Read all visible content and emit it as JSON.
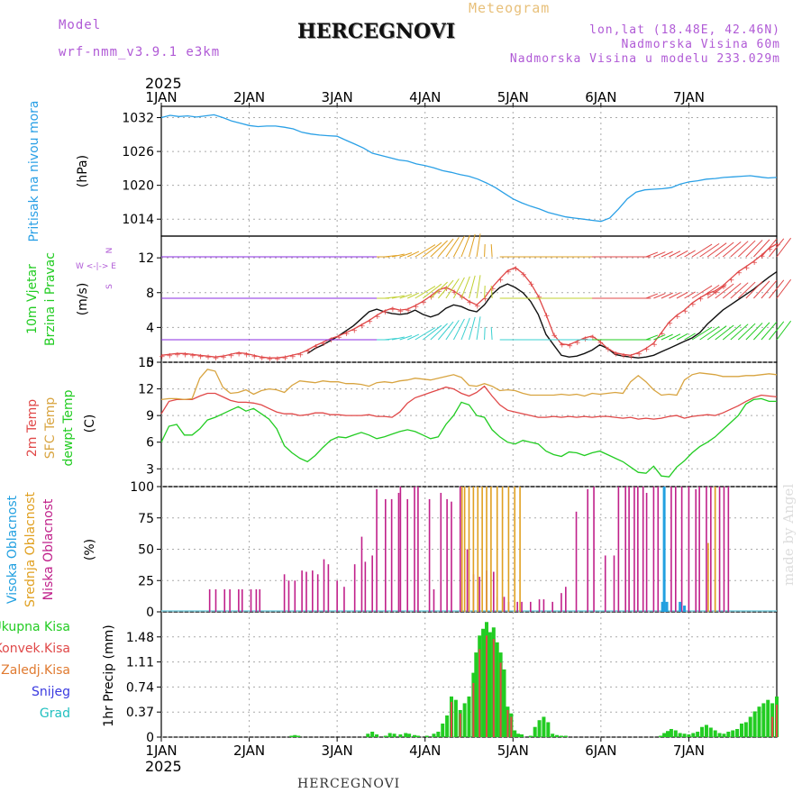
{
  "header": {
    "model_label": "Model",
    "model_version": "wrf-nmm_v3.9.1 e3km",
    "title": "HERCEGNOVI",
    "meteogram_label": "Meteogram",
    "lonlat": "lon,lat (18.48E, 42.46N)",
    "elevation": "Nadmorska Visina 60m",
    "model_elevation": "Nadmorska Visina u modelu 233.029m"
  },
  "footer": {
    "location": "HERCEGNOVI",
    "watermark": "made by Angel"
  },
  "colors": {
    "pressure": "#2aa0e6",
    "wind_speed": "#e04848",
    "wind_gust": "#111111",
    "temp2m": "#e04848",
    "sfc_temp": "#d8a440",
    "dewpt": "#22cc22",
    "cloud_high": "#22a0e0",
    "cloud_mid": "#e0a020",
    "cloud_low": "#c0208a",
    "precip_total": "#22cc22",
    "precip_conv": "#e04848",
    "precip_frz": "#e07a30",
    "snow": "#3a3ae0",
    "grad": "#22c0c0",
    "wind_labels": "#b05ad6"
  },
  "chart_data": [
    {
      "type": "line",
      "title": "Pritisak na nivou mora",
      "ylabel": "(hPa)",
      "ylim": [
        1011,
        1034
      ],
      "yticks": [
        1014,
        1020,
        1026,
        1032
      ],
      "x": [
        0,
        0.1,
        0.2,
        0.3,
        0.4,
        0.5,
        0.6,
        0.7,
        0.8,
        0.9,
        1.0,
        1.1,
        1.2,
        1.3,
        1.4,
        1.5,
        1.6,
        1.7,
        1.8,
        1.9,
        2.0,
        2.1,
        2.2,
        2.3,
        2.4,
        2.5,
        2.6,
        2.7,
        2.8,
        2.9,
        3.0,
        3.1,
        3.2,
        3.3,
        3.4,
        3.5,
        3.6,
        3.7,
        3.8,
        3.9,
        4.0,
        4.1,
        4.2,
        4.3,
        4.4,
        4.5,
        4.6,
        4.7,
        4.8,
        4.9,
        5.0,
        5.1,
        5.2,
        5.3,
        5.4,
        5.5,
        5.6,
        5.7,
        5.8,
        5.9,
        6.0,
        6.1,
        6.2,
        6.3,
        6.4,
        6.5,
        6.6,
        6.7,
        6.8,
        6.9,
        7.0
      ],
      "values": [
        1032,
        1032.4,
        1032.2,
        1032.3,
        1032.1,
        1032.3,
        1032.5,
        1032,
        1031.4,
        1031,
        1030.6,
        1030.4,
        1030.5,
        1030.5,
        1030.3,
        1030,
        1029.4,
        1029.1,
        1028.9,
        1028.8,
        1028.7,
        1028,
        1027.3,
        1026.6,
        1025.7,
        1025.3,
        1024.9,
        1024.5,
        1024.3,
        1023.8,
        1023.5,
        1023.1,
        1022.6,
        1022.3,
        1021.9,
        1021.6,
        1021.1,
        1020.4,
        1019.6,
        1018.6,
        1017.6,
        1016.9,
        1016.3,
        1015.8,
        1015.2,
        1014.8,
        1014.4,
        1014.2,
        1014,
        1013.8,
        1013.6,
        1014.2,
        1015.8,
        1017.6,
        1018.8,
        1019.2,
        1019.3,
        1019.4,
        1019.6,
        1020.2,
        1020.6,
        1020.8,
        1021.1,
        1021.2,
        1021.4,
        1021.5,
        1021.6,
        1021.7,
        1021.5,
        1021.3,
        1021.4
      ],
      "x_days": [
        "1JAN",
        "2JAN",
        "3JAN",
        "4JAN",
        "5JAN",
        "6JAN",
        "7JAN"
      ],
      "year": "2025"
    },
    {
      "type": "line",
      "title": "10m Vjetar",
      "subtitle": "Brzina i Pravac",
      "ylabel": "(m/s)",
      "ylim": [
        0,
        14.5
      ],
      "yticks": [
        0,
        4,
        8,
        12
      ],
      "compass_label": "W <-|-> E",
      "compass_n": "N",
      "compass_s": "S",
      "series": [
        {
          "name": "Brzina (wind speed)",
          "values": [
            0.8,
            0.9,
            1.0,
            1.0,
            0.9,
            0.8,
            0.7,
            0.6,
            0.7,
            0.9,
            1.1,
            1.0,
            0.8,
            0.6,
            0.5,
            0.5,
            0.6,
            0.8,
            1.0,
            1.4,
            1.9,
            2.3,
            2.7,
            3.0,
            3.4,
            3.8,
            4.3,
            4.8,
            5.4,
            5.9,
            6.2,
            6.0,
            6.1,
            6.5,
            7.0,
            7.6,
            8.3,
            8.6,
            8.2,
            7.6,
            7.0,
            6.6,
            7.4,
            8.6,
            9.6,
            10.5,
            10.9,
            10.2,
            9.1,
            7.6,
            5.5,
            3.2,
            2.1,
            2.0,
            2.4,
            2.8,
            3.0,
            2.4,
            1.6,
            1.1,
            0.9,
            0.8,
            1.1,
            1.6,
            2.2,
            3.4,
            4.6,
            5.4,
            6.0,
            6.8,
            7.4,
            7.9,
            8.2,
            8.8,
            9.6,
            10.4,
            11.0,
            11.6,
            12.3,
            13.1,
            13.6
          ]
        },
        {
          "name": "Udari (gust)",
          "values": [
            null,
            null,
            null,
            null,
            null,
            null,
            null,
            null,
            null,
            null,
            null,
            null,
            null,
            null,
            null,
            null,
            null,
            null,
            null,
            1.0,
            1.6,
            2.0,
            2.5,
            3.0,
            3.6,
            4.2,
            5.0,
            5.8,
            6.1,
            5.8,
            5.6,
            5.5,
            5.6,
            6.0,
            5.5,
            5.2,
            5.5,
            6.2,
            6.6,
            6.4,
            6.0,
            5.8,
            6.6,
            7.8,
            8.6,
            9.0,
            8.6,
            8.0,
            7.0,
            5.5,
            3.2,
            2.0,
            0.8,
            0.6,
            0.7,
            1.0,
            1.4,
            2.0,
            1.6,
            0.9,
            0.7,
            0.6,
            0.5,
            0.6,
            0.8,
            1.2,
            1.6,
            2.0,
            2.4,
            2.8,
            3.4,
            4.4,
            5.2,
            6.0,
            6.6,
            7.2,
            7.8,
            8.4,
            9.1,
            9.8,
            10.4
          ]
        }
      ],
      "x_count": 81
    },
    {
      "type": "line",
      "titles": [
        "2m Temp",
        "SFC Temp",
        "dewpt Temp"
      ],
      "ylabel": "(C)",
      "ylim": [
        1,
        15
      ],
      "yticks": [
        3,
        6,
        9,
        12,
        15
      ],
      "series": [
        {
          "name": "2m Temp",
          "values": [
            9.2,
            10.6,
            10.8,
            10.8,
            10.8,
            11.2,
            11.5,
            11.5,
            11.1,
            10.7,
            10.5,
            10.5,
            10.4,
            10.2,
            9.8,
            9.4,
            9.2,
            9.2,
            9.0,
            9.1,
            9.3,
            9.3,
            9.1,
            9.1,
            9.0,
            9.0,
            9.0,
            9.1,
            8.9,
            8.9,
            8.8,
            9.4,
            10.4,
            11.0,
            11.3,
            11.6,
            11.9,
            12.2,
            12.0,
            11.5,
            11.2,
            11.6,
            12.3,
            11.2,
            10.2,
            9.6,
            9.4,
            9.2,
            9.0,
            8.8,
            8.8,
            8.9,
            8.8,
            8.9,
            8.8,
            8.9,
            8.8,
            8.9,
            8.9,
            8.8,
            8.7,
            8.8,
            8.6,
            8.7,
            8.6,
            8.7,
            8.9,
            9.0,
            8.7,
            8.9,
            9.0,
            9.1,
            9.0,
            9.3,
            9.7,
            10.1,
            10.6,
            11.0,
            11.3,
            11.2,
            11.1
          ]
        },
        {
          "name": "SFC Temp",
          "values": [
            10.8,
            10.9,
            10.9,
            10.8,
            10.9,
            13.2,
            14.2,
            14.0,
            12.2,
            11.5,
            11.6,
            11.9,
            11.4,
            11.8,
            12.0,
            11.9,
            11.6,
            12.4,
            12.9,
            12.8,
            12.7,
            12.9,
            12.8,
            12.8,
            12.6,
            12.6,
            12.5,
            12.3,
            12.7,
            12.8,
            12.7,
            12.9,
            13.0,
            13.2,
            13.1,
            13.0,
            13.2,
            13.4,
            13.6,
            13.3,
            12.4,
            12.3,
            12.6,
            12.3,
            11.8,
            11.9,
            11.8,
            11.5,
            11.3,
            11.3,
            11.3,
            11.3,
            11.4,
            11.3,
            11.4,
            11.2,
            11.5,
            11.4,
            11.5,
            11.6,
            11.5,
            12.8,
            13.5,
            12.8,
            11.9,
            11.3,
            11.4,
            11.3,
            13.0,
            13.6,
            13.8,
            13.7,
            13.6,
            13.4,
            13.4,
            13.4,
            13.5,
            13.5,
            13.6,
            13.7,
            13.6
          ]
        },
        {
          "name": "dewpt Temp",
          "values": [
            6.0,
            7.8,
            8.0,
            6.8,
            6.8,
            7.5,
            8.5,
            8.8,
            9.2,
            9.6,
            10.0,
            9.5,
            9.8,
            9.2,
            8.6,
            7.5,
            5.6,
            4.8,
            4.2,
            3.8,
            4.5,
            5.4,
            6.2,
            6.6,
            6.5,
            6.8,
            7.1,
            6.8,
            6.4,
            6.6,
            6.9,
            7.2,
            7.4,
            7.2,
            6.8,
            6.4,
            6.6,
            8.0,
            9.0,
            10.5,
            10.2,
            9.0,
            8.8,
            7.4,
            6.6,
            6.0,
            5.8,
            6.2,
            6.0,
            5.8,
            5.0,
            4.6,
            4.4,
            4.9,
            4.8,
            4.5,
            4.8,
            5.0,
            4.6,
            4.2,
            3.8,
            3.2,
            2.6,
            2.5,
            3.3,
            2.2,
            2.1,
            3.2,
            3.9,
            4.8,
            5.5,
            6.0,
            6.6,
            7.4,
            8.2,
            9.0,
            10.3,
            10.8,
            10.9,
            10.6,
            10.6
          ]
        }
      ],
      "x_count": 81
    },
    {
      "type": "bar",
      "titles": [
        "Visoka Oblacnost",
        "Srednja Oblacnost",
        "Niska Oblacnost"
      ],
      "ylabel": "(%)",
      "ylim": [
        0,
        100
      ],
      "yticks": [
        0,
        25,
        50,
        75,
        100
      ],
      "series": [
        {
          "name": "Niska Oblacnost",
          "x": [
            0.55,
            0.62,
            0.72,
            0.78,
            0.88,
            0.92,
            1.02,
            1.08,
            1.12,
            1.4,
            1.45,
            1.52,
            1.6,
            1.65,
            1.72,
            1.78,
            1.85,
            1.9,
            2.0,
            2.08,
            2.2,
            2.28,
            2.32,
            2.4,
            2.45,
            2.55,
            2.62,
            2.7,
            2.72,
            2.8,
            2.88,
            2.92,
            3.05,
            3.1,
            3.18,
            3.25,
            3.3,
            3.4,
            3.48,
            3.55,
            3.62,
            3.7,
            3.78,
            3.82,
            3.9,
            3.95,
            4.05,
            4.1,
            4.2,
            4.3,
            4.35,
            4.45,
            4.55,
            4.6,
            4.72,
            4.85,
            4.92,
            5.05,
            5.15,
            5.2,
            5.28,
            5.32,
            5.38,
            5.42,
            5.48,
            5.52,
            5.6,
            5.65,
            5.72,
            5.8,
            5.85,
            5.92,
            6.0,
            6.08,
            6.12,
            6.2,
            6.25,
            6.3,
            6.35,
            6.4,
            6.45
          ],
          "values": [
            18,
            18,
            18,
            18,
            18,
            18,
            18,
            18,
            18,
            30,
            25,
            25,
            33,
            32,
            33,
            30,
            42,
            38,
            25,
            20,
            38,
            60,
            40,
            45,
            98,
            90,
            90,
            95,
            100,
            90,
            100,
            100,
            90,
            18,
            95,
            90,
            88,
            100,
            50,
            30,
            28,
            33,
            32,
            12,
            12,
            8,
            8,
            8,
            8,
            10,
            10,
            8,
            15,
            20,
            80,
            98,
            100,
            45,
            45,
            100,
            100,
            100,
            100,
            100,
            100,
            95,
            100,
            100,
            100,
            100,
            100,
            100,
            100,
            98,
            100,
            100,
            100,
            100,
            100,
            100,
            100
          ]
        },
        {
          "name": "Srednja Oblacnost",
          "x": [
            3.42,
            3.45,
            3.5,
            3.55,
            3.6,
            3.65,
            3.7,
            3.75,
            3.82,
            3.88,
            3.95,
            4.02,
            4.08,
            6.22,
            6.3
          ],
          "values": [
            100,
            100,
            100,
            100,
            100,
            100,
            100,
            100,
            100,
            100,
            100,
            100,
            100,
            55,
            100
          ]
        },
        {
          "name": "Visoka Oblacnost",
          "x": [
            5.7,
            5.72,
            5.75,
            5.9,
            5.95
          ],
          "values": [
            8,
            100,
            8,
            8,
            5
          ]
        }
      ]
    },
    {
      "type": "bar",
      "titles": [
        "Ukupna Kisa",
        "Konvek.Kisa",
        "Zaledj.Kisa",
        "Snijeg",
        "Grad"
      ],
      "ylabel": "1hr Precip (mm)",
      "ylim": [
        0,
        1.85
      ],
      "yticks": [
        0,
        0.37,
        0.74,
        1.11,
        1.48
      ],
      "ytick_labels": [
        "0",
        "0.37",
        "0.74",
        "1.11",
        "1.48"
      ],
      "series": [
        {
          "name": "Ukupna Kisa",
          "x": [
            1.48,
            1.52,
            1.56,
            2.35,
            2.4,
            2.45,
            2.55,
            2.6,
            2.65,
            2.72,
            2.78,
            2.82,
            2.88,
            2.92,
            3.02,
            3.1,
            3.15,
            3.2,
            3.25,
            3.3,
            3.35,
            3.4,
            3.45,
            3.5,
            3.55,
            3.58,
            3.62,
            3.66,
            3.7,
            3.74,
            3.78,
            3.82,
            3.86,
            3.9,
            3.94,
            3.98,
            4.02,
            4.06,
            4.1,
            4.2,
            4.25,
            4.3,
            4.35,
            4.4,
            4.45,
            4.5,
            4.55,
            4.6,
            5.68,
            5.72,
            5.76,
            5.8,
            5.85,
            5.9,
            5.95,
            6.0,
            6.05,
            6.1,
            6.15,
            6.2,
            6.25,
            6.3,
            6.35,
            6.4,
            6.45,
            6.5,
            6.55,
            6.6,
            6.65,
            6.7,
            6.75,
            6.8,
            6.85,
            6.9,
            6.95,
            7.0
          ],
          "values": [
            0.02,
            0.03,
            0.02,
            0.05,
            0.08,
            0.04,
            0.02,
            0.06,
            0.05,
            0.04,
            0.06,
            0.05,
            0.03,
            0.02,
            0.02,
            0.05,
            0.08,
            0.2,
            0.32,
            0.6,
            0.55,
            0.4,
            0.5,
            0.6,
            0.95,
            1.25,
            1.5,
            1.6,
            1.7,
            1.55,
            1.62,
            1.4,
            1.25,
            1.0,
            0.45,
            0.35,
            0.1,
            0.05,
            0.04,
            0.02,
            0.15,
            0.25,
            0.3,
            0.22,
            0.05,
            0.03,
            0.02,
            0.02,
            0.02,
            0.06,
            0.09,
            0.12,
            0.1,
            0.06,
            0.05,
            0.04,
            0.06,
            0.08,
            0.15,
            0.18,
            0.14,
            0.1,
            0.06,
            0.05,
            0.08,
            0.1,
            0.12,
            0.2,
            0.22,
            0.3,
            0.38,
            0.45,
            0.5,
            0.55,
            0.5,
            0.6
          ]
        },
        {
          "name": "Konvek.Kisa",
          "x": [
            3.3,
            3.4,
            3.55,
            3.62,
            3.7,
            3.78,
            3.86,
            3.94,
            3.98,
            6.95,
            7.0
          ],
          "values": [
            0.52,
            0.35,
            0.8,
            1.3,
            1.5,
            1.45,
            1.1,
            0.4,
            0.3,
            0.3,
            0.48
          ]
        }
      ]
    }
  ]
}
